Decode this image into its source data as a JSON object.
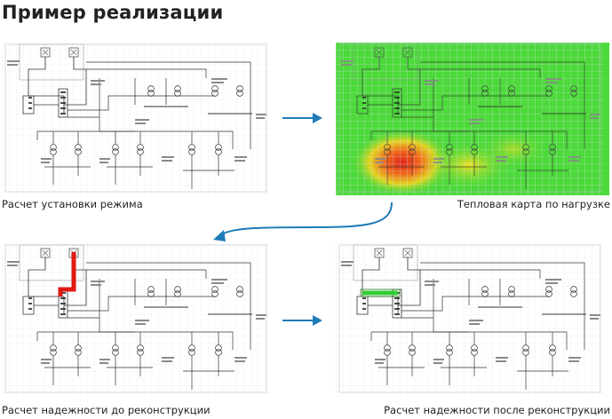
{
  "title": "Пример реализации",
  "captions": {
    "regime": "Расчет установки режима",
    "heatmap": "Тепловая карта по нагрузке",
    "before": "Расчет надежности до реконструкции",
    "after": "Расчет надежности после реконструкции"
  },
  "colors": {
    "arrow": "#1f7ab8",
    "heat_base": "#4cd93a",
    "heat_hot": "#e0241b",
    "fault_red": "#e01a12",
    "fix_green": "#33cc33",
    "grid": "#e3e7ee",
    "line": "#3a3a3a"
  }
}
